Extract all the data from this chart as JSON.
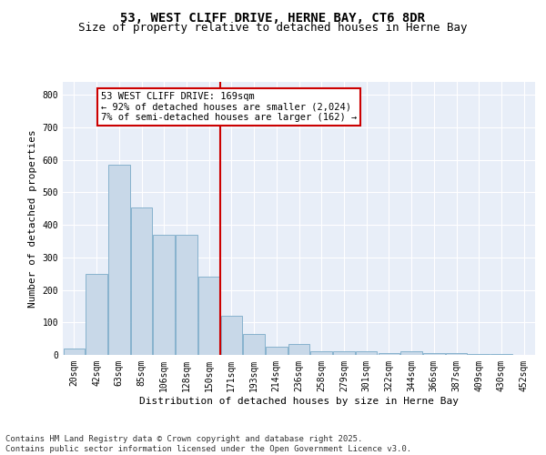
{
  "title": "53, WEST CLIFF DRIVE, HERNE BAY, CT6 8DR",
  "subtitle": "Size of property relative to detached houses in Herne Bay",
  "xlabel": "Distribution of detached houses by size in Herne Bay",
  "ylabel": "Number of detached properties",
  "bar_color": "#c8d8e8",
  "bar_edge_color": "#7aaac8",
  "background_color": "#e8eef8",
  "grid_color": "#ffffff",
  "vline_color": "#cc0000",
  "annotation_text": "53 WEST CLIFF DRIVE: 169sqm\n← 92% of detached houses are smaller (2,024)\n7% of semi-detached houses are larger (162) →",
  "annotation_box_color": "#cc0000",
  "categories": [
    "20sqm",
    "42sqm",
    "63sqm",
    "85sqm",
    "106sqm",
    "128sqm",
    "150sqm",
    "171sqm",
    "193sqm",
    "214sqm",
    "236sqm",
    "258sqm",
    "279sqm",
    "301sqm",
    "322sqm",
    "344sqm",
    "366sqm",
    "387sqm",
    "409sqm",
    "430sqm",
    "452sqm"
  ],
  "values": [
    20,
    248,
    585,
    455,
    370,
    370,
    240,
    120,
    65,
    25,
    35,
    10,
    10,
    10,
    5,
    10,
    5,
    5,
    3,
    2,
    1
  ],
  "ylim": [
    0,
    840
  ],
  "yticks": [
    0,
    100,
    200,
    300,
    400,
    500,
    600,
    700,
    800
  ],
  "vline_index": 7,
  "footer": "Contains HM Land Registry data © Crown copyright and database right 2025.\nContains public sector information licensed under the Open Government Licence v3.0.",
  "title_fontsize": 10,
  "subtitle_fontsize": 9,
  "axis_label_fontsize": 8,
  "tick_fontsize": 7,
  "footer_fontsize": 6.5,
  "annotation_fontsize": 7.5
}
